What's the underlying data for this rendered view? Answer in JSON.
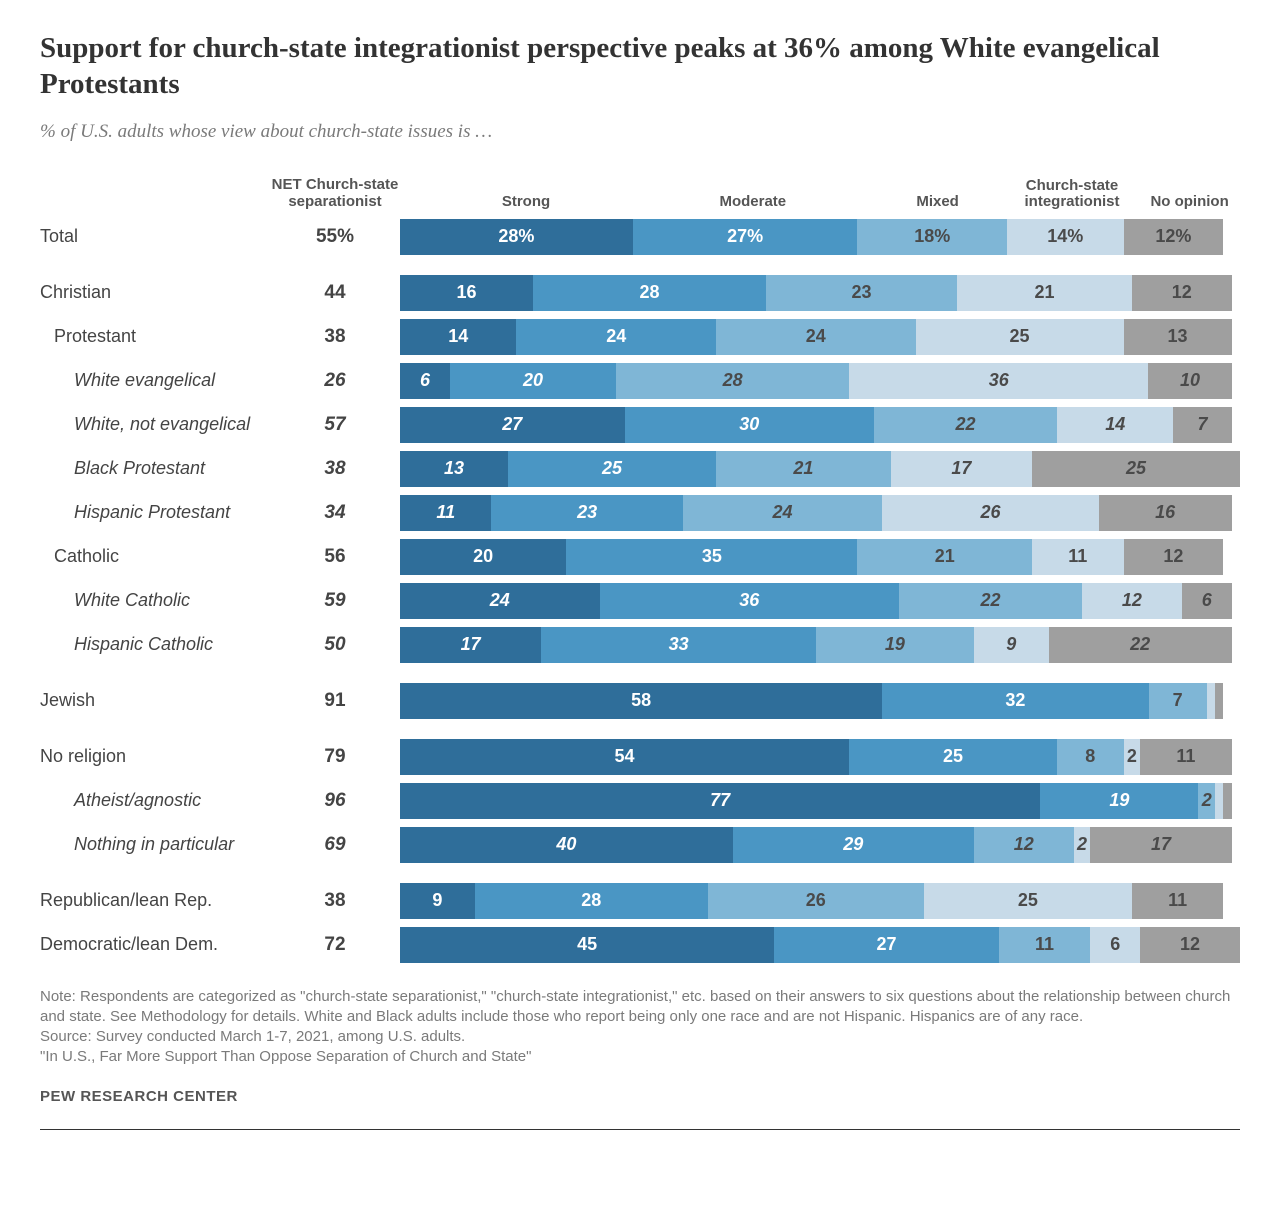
{
  "title": "Support for church-state integrationist perspective peaks at 36% among White evangelical Protestants",
  "subtitle": "% of U.S. adults whose view about church-state issues is …",
  "columns": {
    "net_line1": "NET Church-state",
    "net_line2": "separationist",
    "strong": "Strong",
    "moderate": "Moderate",
    "mixed": "Mixed",
    "integrationist_line1": "Church-state",
    "integrationist_line2": "integrationist",
    "no_opinion": "No opinion"
  },
  "header_positions_pct": {
    "strong": 15,
    "moderate": 42,
    "mixed": 64,
    "integrationist": 80,
    "no_opinion": 94
  },
  "colors": {
    "strong": "#2f6e9a",
    "moderate": "#4a96c4",
    "mixed": "#7fb6d6",
    "integrationist": "#c7dae8",
    "no_opinion": "#9f9f9f",
    "bg": "#ffffff"
  },
  "segment_text_colors": {
    "strong": "light",
    "moderate": "light",
    "mixed": "dark",
    "integrationist": "dark",
    "no_opinion": "dark"
  },
  "rows": [
    {
      "label": "Total",
      "net": "55%",
      "indent": 0,
      "italic": false,
      "group_gap": false,
      "segs": [
        {
          "k": "strong",
          "v": 28,
          "t": "28%"
        },
        {
          "k": "moderate",
          "v": 27,
          "t": "27%"
        },
        {
          "k": "mixed",
          "v": 18,
          "t": "18%"
        },
        {
          "k": "integrationist",
          "v": 14,
          "t": "14%"
        },
        {
          "k": "no_opinion",
          "v": 12,
          "t": "12%"
        }
      ]
    },
    {
      "label": "Christian",
      "net": "44",
      "indent": 0,
      "italic": false,
      "group_gap": true,
      "segs": [
        {
          "k": "strong",
          "v": 16,
          "t": "16"
        },
        {
          "k": "moderate",
          "v": 28,
          "t": "28"
        },
        {
          "k": "mixed",
          "v": 23,
          "t": "23"
        },
        {
          "k": "integrationist",
          "v": 21,
          "t": "21"
        },
        {
          "k": "no_opinion",
          "v": 12,
          "t": "12"
        }
      ]
    },
    {
      "label": "Protestant",
      "net": "38",
      "indent": 1,
      "italic": false,
      "group_gap": false,
      "segs": [
        {
          "k": "strong",
          "v": 14,
          "t": "14"
        },
        {
          "k": "moderate",
          "v": 24,
          "t": "24"
        },
        {
          "k": "mixed",
          "v": 24,
          "t": "24"
        },
        {
          "k": "integrationist",
          "v": 25,
          "t": "25"
        },
        {
          "k": "no_opinion",
          "v": 13,
          "t": "13"
        }
      ]
    },
    {
      "label": "White evangelical",
      "net": "26",
      "indent": 2,
      "italic": true,
      "group_gap": false,
      "segs": [
        {
          "k": "strong",
          "v": 6,
          "t": "6"
        },
        {
          "k": "moderate",
          "v": 20,
          "t": "20"
        },
        {
          "k": "mixed",
          "v": 28,
          "t": "28"
        },
        {
          "k": "integrationist",
          "v": 36,
          "t": "36"
        },
        {
          "k": "no_opinion",
          "v": 10,
          "t": "10"
        }
      ]
    },
    {
      "label": "White, not evangelical",
      "net": "57",
      "indent": 2,
      "italic": true,
      "group_gap": false,
      "segs": [
        {
          "k": "strong",
          "v": 27,
          "t": "27"
        },
        {
          "k": "moderate",
          "v": 30,
          "t": "30"
        },
        {
          "k": "mixed",
          "v": 22,
          "t": "22"
        },
        {
          "k": "integrationist",
          "v": 14,
          "t": "14"
        },
        {
          "k": "no_opinion",
          "v": 7,
          "t": "7"
        }
      ]
    },
    {
      "label": "Black Protestant",
      "net": "38",
      "indent": 2,
      "italic": true,
      "group_gap": false,
      "segs": [
        {
          "k": "strong",
          "v": 13,
          "t": "13"
        },
        {
          "k": "moderate",
          "v": 25,
          "t": "25"
        },
        {
          "k": "mixed",
          "v": 21,
          "t": "21"
        },
        {
          "k": "integrationist",
          "v": 17,
          "t": "17"
        },
        {
          "k": "no_opinion",
          "v": 25,
          "t": "25"
        }
      ]
    },
    {
      "label": "Hispanic Protestant",
      "net": "34",
      "indent": 2,
      "italic": true,
      "group_gap": false,
      "segs": [
        {
          "k": "strong",
          "v": 11,
          "t": "11"
        },
        {
          "k": "moderate",
          "v": 23,
          "t": "23"
        },
        {
          "k": "mixed",
          "v": 24,
          "t": "24"
        },
        {
          "k": "integrationist",
          "v": 26,
          "t": "26"
        },
        {
          "k": "no_opinion",
          "v": 16,
          "t": "16"
        }
      ]
    },
    {
      "label": "Catholic",
      "net": "56",
      "indent": 1,
      "italic": false,
      "group_gap": false,
      "segs": [
        {
          "k": "strong",
          "v": 20,
          "t": "20"
        },
        {
          "k": "moderate",
          "v": 35,
          "t": "35"
        },
        {
          "k": "mixed",
          "v": 21,
          "t": "21"
        },
        {
          "k": "integrationist",
          "v": 11,
          "t": "11"
        },
        {
          "k": "no_opinion",
          "v": 12,
          "t": "12"
        }
      ]
    },
    {
      "label": "White Catholic",
      "net": "59",
      "indent": 2,
      "italic": true,
      "group_gap": false,
      "segs": [
        {
          "k": "strong",
          "v": 24,
          "t": "24"
        },
        {
          "k": "moderate",
          "v": 36,
          "t": "36"
        },
        {
          "k": "mixed",
          "v": 22,
          "t": "22"
        },
        {
          "k": "integrationist",
          "v": 12,
          "t": "12"
        },
        {
          "k": "no_opinion",
          "v": 6,
          "t": "6"
        }
      ]
    },
    {
      "label": "Hispanic Catholic",
      "net": "50",
      "indent": 2,
      "italic": true,
      "group_gap": false,
      "segs": [
        {
          "k": "strong",
          "v": 17,
          "t": "17"
        },
        {
          "k": "moderate",
          "v": 33,
          "t": "33"
        },
        {
          "k": "mixed",
          "v": 19,
          "t": "19"
        },
        {
          "k": "integrationist",
          "v": 9,
          "t": "9"
        },
        {
          "k": "no_opinion",
          "v": 22,
          "t": "22"
        }
      ]
    },
    {
      "label": "Jewish",
      "net": "91",
      "indent": 0,
      "italic": false,
      "group_gap": true,
      "segs": [
        {
          "k": "strong",
          "v": 58,
          "t": "58"
        },
        {
          "k": "moderate",
          "v": 32,
          "t": "32"
        },
        {
          "k": "mixed",
          "v": 7,
          "t": "7"
        },
        {
          "k": "integrationist",
          "v": 1,
          "t": ""
        },
        {
          "k": "no_opinion",
          "v": 1,
          "t": ""
        }
      ]
    },
    {
      "label": "No religion",
      "net": "79",
      "indent": 0,
      "italic": false,
      "group_gap": true,
      "segs": [
        {
          "k": "strong",
          "v": 54,
          "t": "54"
        },
        {
          "k": "moderate",
          "v": 25,
          "t": "25"
        },
        {
          "k": "mixed",
          "v": 8,
          "t": "8"
        },
        {
          "k": "integrationist",
          "v": 2,
          "t": "2"
        },
        {
          "k": "no_opinion",
          "v": 11,
          "t": "11"
        }
      ]
    },
    {
      "label": "Atheist/agnostic",
      "net": "96",
      "indent": 2,
      "italic": true,
      "group_gap": false,
      "segs": [
        {
          "k": "strong",
          "v": 77,
          "t": "77"
        },
        {
          "k": "moderate",
          "v": 19,
          "t": "19"
        },
        {
          "k": "mixed",
          "v": 2,
          "t": "2"
        },
        {
          "k": "integrationist",
          "v": 1,
          "t": ""
        },
        {
          "k": "no_opinion",
          "v": 1,
          "t": ""
        }
      ]
    },
    {
      "label": "Nothing in particular",
      "net": "69",
      "indent": 2,
      "italic": true,
      "group_gap": false,
      "segs": [
        {
          "k": "strong",
          "v": 40,
          "t": "40"
        },
        {
          "k": "moderate",
          "v": 29,
          "t": "29"
        },
        {
          "k": "mixed",
          "v": 12,
          "t": "12"
        },
        {
          "k": "integrationist",
          "v": 2,
          "t": "2"
        },
        {
          "k": "no_opinion",
          "v": 17,
          "t": "17"
        }
      ]
    },
    {
      "label": "Republican/lean Rep.",
      "net": "38",
      "indent": 0,
      "italic": false,
      "group_gap": true,
      "segs": [
        {
          "k": "strong",
          "v": 9,
          "t": "9"
        },
        {
          "k": "moderate",
          "v": 28,
          "t": "28"
        },
        {
          "k": "mixed",
          "v": 26,
          "t": "26"
        },
        {
          "k": "integrationist",
          "v": 25,
          "t": "25"
        },
        {
          "k": "no_opinion",
          "v": 11,
          "t": "11"
        }
      ]
    },
    {
      "label": "Democratic/lean Dem.",
      "net": "72",
      "indent": 0,
      "italic": false,
      "group_gap": false,
      "segs": [
        {
          "k": "strong",
          "v": 45,
          "t": "45"
        },
        {
          "k": "moderate",
          "v": 27,
          "t": "27"
        },
        {
          "k": "mixed",
          "v": 11,
          "t": "11"
        },
        {
          "k": "integrationist",
          "v": 6,
          "t": "6"
        },
        {
          "k": "no_opinion",
          "v": 12,
          "t": "12"
        }
      ]
    }
  ],
  "scale_max": 101,
  "note_lines": [
    "Note: Respondents are categorized as \"church-state separationist,\" \"church-state integrationist,\" etc. based on their answers to six questions about the relationship between church and state. See Methodology for details. White and Black adults include those who report being only one race and are not Hispanic. Hispanics are of any race.",
    "Source: Survey conducted March 1-7, 2021, among U.S. adults.",
    "\"In U.S., Far More Support Than Oppose Separation of Church and State\""
  ],
  "org": "PEW RESEARCH CENTER"
}
